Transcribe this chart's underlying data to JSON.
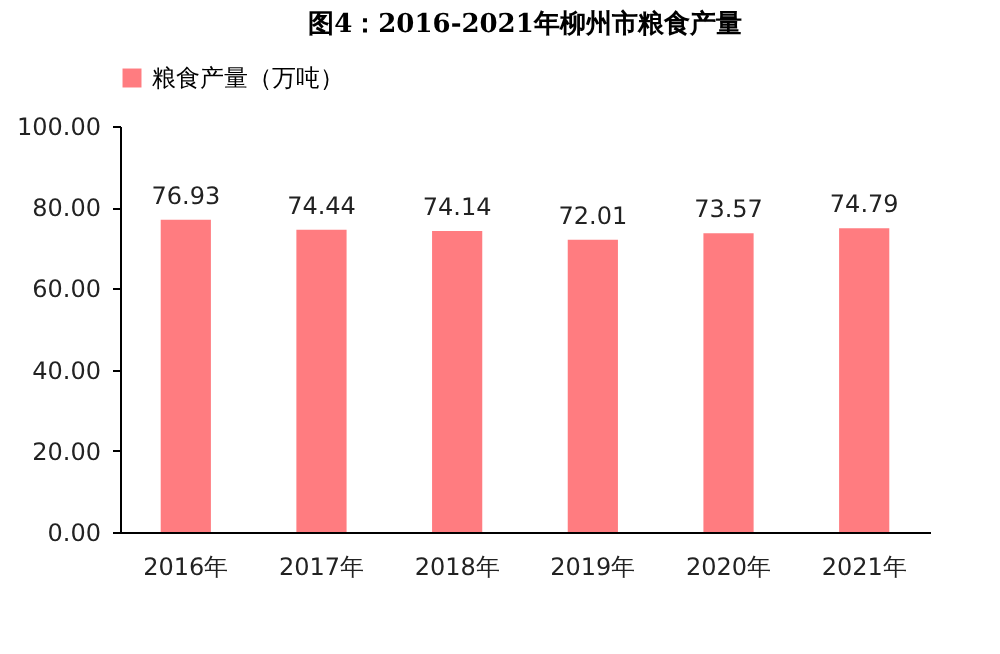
{
  "chart_data": {
    "type": "bar",
    "title": "图4：2016-2021年柳州市粮食产量",
    "categories": [
      "2016年",
      "2017年",
      "2018年",
      "2019年",
      "2020年",
      "2021年"
    ],
    "series": [
      {
        "name": "粮食产量（万吨）",
        "color": "#ff7c80",
        "values": [
          76.93,
          74.44,
          74.14,
          72.01,
          73.57,
          74.79
        ]
      }
    ],
    "ylim": [
      0,
      100
    ],
    "yticks": [
      {
        "value": 0,
        "label": "0.00"
      },
      {
        "value": 20,
        "label": "20.00"
      },
      {
        "value": 40,
        "label": "40.00"
      },
      {
        "value": 60,
        "label": "60.00"
      },
      {
        "value": 80,
        "label": "80.00"
      },
      {
        "value": 100,
        "label": "100.00"
      }
    ],
    "data_labels": true,
    "grid": false,
    "legend": "top"
  }
}
